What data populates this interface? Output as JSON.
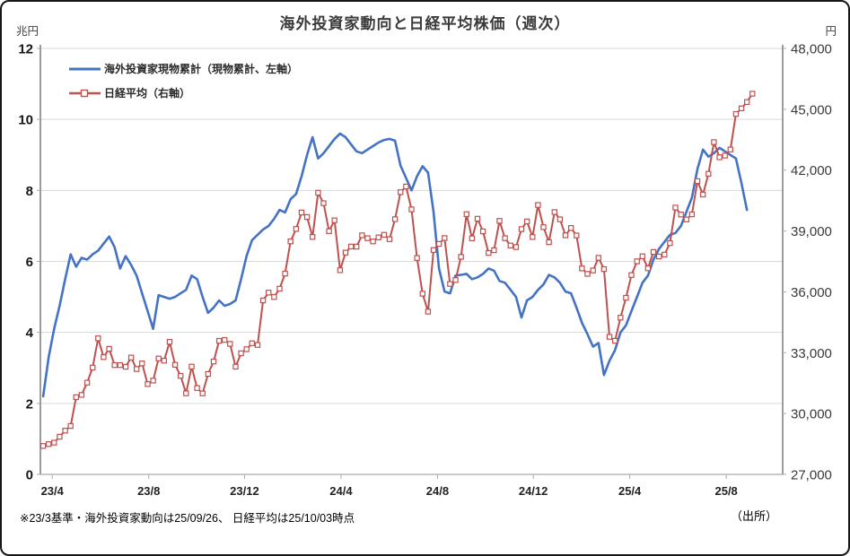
{
  "title": "海外投資家動向と日経平均株価（週次）",
  "footnote": {
    "note": "※23/3基準・海外投資家動向は25/09/26、 日経平均は25/10/03時点",
    "source": "（出所）"
  },
  "chart_data": {
    "type": "line",
    "frequency": "weekly",
    "grid": "horizontal",
    "legend_position": "top-left-inside",
    "left_axis": {
      "unit": "兆円",
      "min": 0,
      "max": 12,
      "ticks": [
        0,
        2,
        4,
        6,
        8,
        10,
        12
      ]
    },
    "right_axis": {
      "unit": "円",
      "min": 27000,
      "max": 48000,
      "ticks": [
        27000,
        30000,
        33000,
        36000,
        39000,
        42000,
        45000,
        48000
      ]
    },
    "x_ticks": {
      "labels": [
        "23/4",
        "23/8",
        "23/12",
        "24/4",
        "24/8",
        "24/12",
        "25/4",
        "25/8"
      ],
      "positions": [
        0.016,
        0.146,
        0.275,
        0.405,
        0.535,
        0.664,
        0.794,
        0.924
      ]
    },
    "series": [
      {
        "name": "海外投資家現物累計（現物累計、左軸）",
        "axis": "left",
        "color": "#4472C4",
        "marker": "none",
        "line_width": 2.6,
        "values": [
          2.2,
          3.3,
          4.1,
          4.75,
          5.5,
          6.2,
          5.85,
          6.1,
          6.05,
          6.2,
          6.3,
          6.5,
          6.7,
          6.4,
          5.8,
          6.15,
          5.9,
          5.6,
          5.1,
          4.6,
          4.1,
          5.05,
          5.0,
          4.95,
          5.0,
          5.1,
          5.2,
          5.6,
          5.5,
          5.0,
          4.55,
          4.7,
          4.9,
          4.75,
          4.8,
          4.9,
          5.5,
          6.15,
          6.6,
          6.75,
          6.9,
          7.0,
          7.2,
          7.45,
          7.38,
          7.75,
          7.9,
          8.4,
          9.0,
          9.5,
          8.9,
          9.05,
          9.25,
          9.45,
          9.6,
          9.5,
          9.3,
          9.1,
          9.05,
          9.15,
          9.25,
          9.35,
          9.42,
          9.45,
          9.4,
          8.7,
          8.35,
          8.0,
          8.4,
          8.68,
          8.5,
          7.4,
          5.8,
          5.15,
          5.1,
          5.6,
          5.62,
          5.65,
          5.5,
          5.55,
          5.65,
          5.8,
          5.74,
          5.45,
          5.4,
          5.2,
          5.0,
          4.42,
          4.9,
          5.0,
          5.2,
          5.35,
          5.62,
          5.55,
          5.4,
          5.15,
          5.1,
          4.7,
          4.27,
          3.95,
          3.6,
          3.7,
          2.8,
          3.2,
          3.5,
          4.0,
          4.2,
          4.6,
          5.0,
          5.4,
          5.6,
          6.05,
          6.35,
          6.55,
          6.75,
          6.8,
          7.0,
          7.4,
          7.8,
          8.6,
          9.15,
          8.95,
          9.05,
          9.2,
          9.1,
          9.0,
          8.9,
          8.2,
          7.45
        ]
      },
      {
        "name": "日経平均（右軸）",
        "axis": "right",
        "color": "#C0504D",
        "marker": "open-square",
        "line_width": 2.0,
        "values": [
          28400,
          28493,
          28564,
          28856,
          29158,
          29388,
          30808,
          30916,
          31524,
          32265,
          33706,
          32781,
          33189,
          32388,
          32391,
          32304,
          32759,
          32193,
          32474,
          31451,
          31624,
          32711,
          32607,
          33533,
          32402,
          31858,
          30995,
          32316,
          31259,
          30992,
          31950,
          32568,
          33585,
          33626,
          33432,
          32308,
          32971,
          33170,
          33464,
          33378,
          35577,
          35963,
          35751,
          36158,
          36897,
          38487,
          39099,
          39911,
          39689,
          38708,
          40888,
          40369,
          38992,
          39524,
          37068,
          37935,
          38236,
          38229,
          38787,
          38646,
          38488,
          38684,
          38815,
          38596,
          39583,
          40912,
          41191,
          40064,
          37667,
          35910,
          35025,
          38062,
          38364,
          38648,
          36391,
          36582,
          37724,
          39830,
          38636,
          39606,
          38982,
          37914,
          38054,
          39500,
          38643,
          38284,
          38208,
          39091,
          39470,
          38702,
          40281,
          39190,
          38451,
          39932,
          39572,
          38787,
          39149,
          38776,
          37156,
          36887,
          37053,
          37677,
          37120,
          33781,
          33586,
          34730,
          35706,
          36830,
          37503,
          37754,
          37160,
          37965,
          37742,
          37834,
          38403,
          40151,
          39811,
          39570,
          39819,
          41456,
          40800,
          41820,
          43378,
          42633,
          42718,
          43018,
          44768,
          45045,
          45355,
          45769
        ]
      }
    ]
  }
}
